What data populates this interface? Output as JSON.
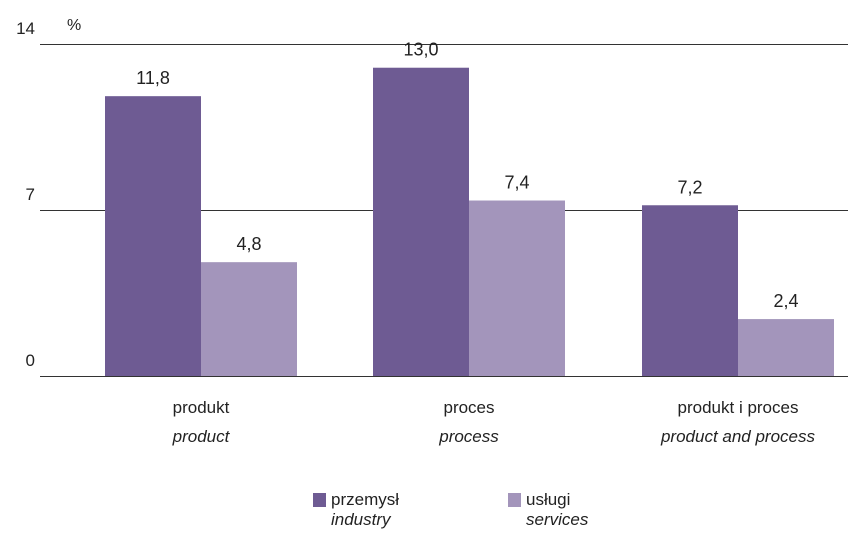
{
  "chart_data": {
    "type": "bar",
    "ylabel": "%",
    "ylim": [
      0,
      14
    ],
    "yticks": [
      "0",
      "7",
      "14"
    ],
    "grid": true,
    "legend_position": "bottom",
    "categories": [
      {
        "pl": "produkt",
        "en": "product"
      },
      {
        "pl": "proces",
        "en": "process"
      },
      {
        "pl": "produkt i proces",
        "en": "product and process"
      }
    ],
    "series": [
      {
        "name_pl": "przemysł",
        "name_en": "industry",
        "color": "#6e5b93",
        "values": [
          11.8,
          13.0,
          7.2
        ],
        "labels": [
          "11,8",
          "13,0",
          "7,2"
        ]
      },
      {
        "name_pl": "usługi",
        "name_en": "services",
        "color": "#a395bb",
        "values": [
          4.8,
          7.4,
          2.4
        ],
        "labels": [
          "4,8",
          "7,4",
          "2,4"
        ]
      }
    ]
  }
}
